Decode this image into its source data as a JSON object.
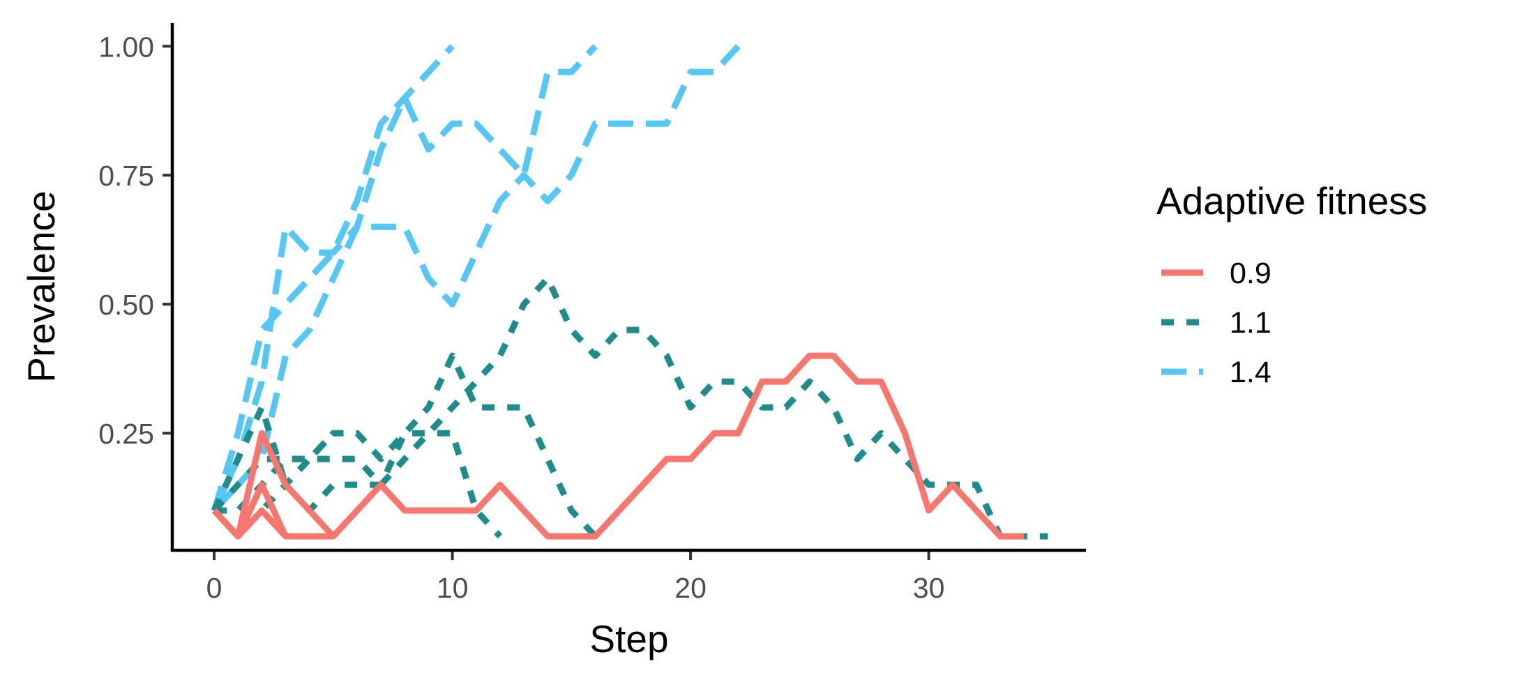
{
  "chart_data": {
    "type": "line",
    "xlabel": "Step",
    "ylabel": "Prevalence",
    "xlim": [
      -1.7,
      36.6
    ],
    "ylim": [
      0.023,
      1.045
    ],
    "x_ticks": [
      0,
      10,
      20,
      30
    ],
    "x_tick_labels": [
      "0",
      "10",
      "20",
      "30"
    ],
    "y_ticks": [
      0.25,
      0.5,
      0.75,
      1.0
    ],
    "y_tick_labels": [
      "0.25",
      "0.50",
      "0.75",
      "1.00"
    ],
    "grid": false,
    "legend": {
      "title": "Adaptive fitness",
      "position": "right",
      "entries": [
        {
          "label": "0.9",
          "color": "#F8766D",
          "dash": "solid"
        },
        {
          "label": "1.1",
          "color": "#1F8C8C",
          "dash": "dotted"
        },
        {
          "label": "1.4",
          "color": "#56C7F5",
          "dash": "dashed"
        }
      ]
    },
    "series": [
      {
        "group": "0.9",
        "x": [
          0,
          1,
          2,
          3,
          4,
          5,
          6,
          7,
          8,
          9,
          10,
          11,
          12,
          13,
          14,
          15,
          16,
          17,
          18,
          19,
          20,
          21,
          22,
          23,
          24,
          25,
          26,
          27,
          28,
          29,
          30,
          31,
          32,
          33,
          34
        ],
        "y": [
          0.1,
          0.05,
          0.15,
          0.05,
          0.05,
          0.05,
          0.1,
          0.15,
          0.1,
          0.1,
          0.1,
          0.1,
          0.15,
          0.1,
          0.05,
          0.05,
          0.05,
          0.1,
          0.15,
          0.2,
          0.2,
          0.25,
          0.25,
          0.35,
          0.35,
          0.4,
          0.4,
          0.35,
          0.35,
          0.25,
          0.1,
          0.15,
          0.1,
          0.05,
          0.05
        ]
      },
      {
        "group": "0.9",
        "x": [
          0,
          1,
          2,
          3,
          4,
          5
        ],
        "y": [
          0.1,
          0.05,
          0.25,
          0.15,
          0.1,
          0.05
        ]
      },
      {
        "group": "0.9",
        "x": [
          0,
          1,
          2,
          3,
          4,
          5
        ],
        "y": [
          0.1,
          0.05,
          0.1,
          0.05,
          0.05,
          0.05
        ]
      },
      {
        "group": "1.1",
        "x": [
          0,
          1,
          2,
          3,
          4,
          5,
          6,
          7,
          8,
          9,
          10,
          11,
          12,
          13,
          14,
          15,
          16,
          17,
          18,
          19,
          20,
          21,
          22,
          23,
          24,
          25,
          26,
          27,
          28,
          29,
          30,
          31,
          32,
          33,
          34,
          35
        ],
        "y": [
          0.1,
          0.1,
          0.15,
          0.2,
          0.2,
          0.2,
          0.2,
          0.15,
          0.2,
          0.25,
          0.3,
          0.35,
          0.4,
          0.5,
          0.55,
          0.45,
          0.4,
          0.45,
          0.45,
          0.4,
          0.3,
          0.35,
          0.35,
          0.3,
          0.3,
          0.35,
          0.3,
          0.2,
          0.25,
          0.2,
          0.15,
          0.15,
          0.15,
          0.05,
          0.05,
          0.05
        ]
      },
      {
        "group": "1.1",
        "x": [
          0,
          1,
          2,
          3,
          4,
          5,
          6,
          7,
          8,
          9,
          10,
          11,
          12,
          13,
          14,
          15,
          16
        ],
        "y": [
          0.1,
          0.15,
          0.2,
          0.2,
          0.2,
          0.25,
          0.25,
          0.2,
          0.25,
          0.3,
          0.4,
          0.3,
          0.3,
          0.3,
          0.2,
          0.1,
          0.05
        ]
      },
      {
        "group": "1.1",
        "x": [
          0,
          1,
          2,
          3,
          4,
          5,
          6,
          7,
          8,
          9,
          10,
          11,
          12
        ],
        "y": [
          0.1,
          0.2,
          0.3,
          0.15,
          0.1,
          0.15,
          0.15,
          0.15,
          0.25,
          0.25,
          0.25,
          0.1,
          0.05
        ]
      },
      {
        "group": "1.1",
        "x": [
          0,
          1,
          2,
          3,
          4,
          5
        ],
        "y": [
          0.1,
          0.05,
          0.1,
          0.15,
          0.2,
          0.25
        ]
      },
      {
        "group": "1.4",
        "x": [
          0,
          1,
          2,
          3,
          4,
          5,
          6,
          7,
          8,
          9,
          10
        ],
        "y": [
          0.1,
          0.25,
          0.45,
          0.5,
          0.55,
          0.6,
          0.7,
          0.85,
          0.9,
          0.95,
          1.0
        ]
      },
      {
        "group": "1.4",
        "x": [
          0,
          1,
          2,
          3,
          4,
          5,
          6,
          7,
          8,
          9,
          10,
          11,
          12,
          13,
          14,
          15,
          16
        ],
        "y": [
          0.1,
          0.2,
          0.35,
          0.65,
          0.6,
          0.6,
          0.65,
          0.8,
          0.9,
          0.8,
          0.85,
          0.85,
          0.8,
          0.75,
          0.95,
          0.95,
          1.0
        ]
      },
      {
        "group": "1.4",
        "x": [
          0,
          1,
          2,
          3,
          4,
          5,
          6,
          7,
          8,
          9,
          10,
          11,
          12,
          13,
          14,
          15,
          16,
          17,
          18,
          19,
          20,
          21,
          22
        ],
        "y": [
          0.1,
          0.15,
          0.2,
          0.4,
          0.45,
          0.55,
          0.65,
          0.65,
          0.65,
          0.55,
          0.5,
          0.6,
          0.7,
          0.75,
          0.7,
          0.75,
          0.85,
          0.85,
          0.85,
          0.85,
          0.95,
          0.95,
          1.0
        ]
      }
    ]
  }
}
